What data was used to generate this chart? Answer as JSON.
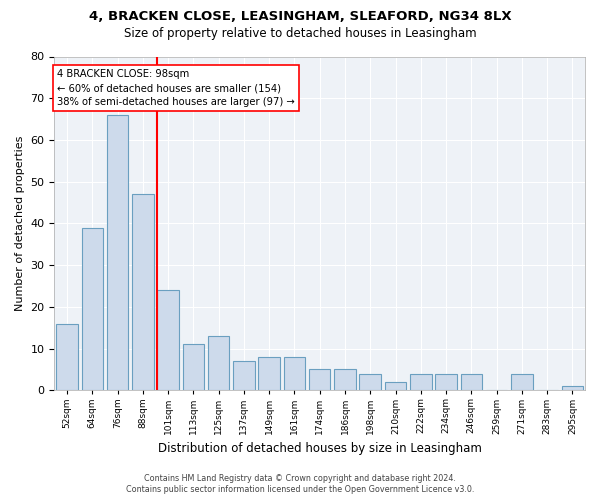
{
  "title1": "4, BRACKEN CLOSE, LEASINGHAM, SLEAFORD, NG34 8LX",
  "title2": "Size of property relative to detached houses in Leasingham",
  "xlabel": "Distribution of detached houses by size in Leasingham",
  "ylabel": "Number of detached properties",
  "bar_color": "#cddaeb",
  "bar_edge_color": "#6a9fc0",
  "vline_color": "red",
  "vline_x_idx": 4,
  "annotation_text": "4 BRACKEN CLOSE: 98sqm\n← 60% of detached houses are smaller (154)\n38% of semi-detached houses are larger (97) →",
  "categories": [
    "52sqm",
    "64sqm",
    "76sqm",
    "88sqm",
    "101sqm",
    "113sqm",
    "125sqm",
    "137sqm",
    "149sqm",
    "161sqm",
    "174sqm",
    "186sqm",
    "198sqm",
    "210sqm",
    "222sqm",
    "234sqm",
    "246sqm",
    "259sqm",
    "271sqm",
    "283sqm",
    "295sqm"
  ],
  "values": [
    16,
    39,
    66,
    47,
    24,
    11,
    13,
    7,
    8,
    8,
    5,
    5,
    4,
    2,
    4,
    4,
    4,
    0,
    4,
    0,
    1
  ],
  "ylim": [
    0,
    80
  ],
  "yticks": [
    0,
    10,
    20,
    30,
    40,
    50,
    60,
    70,
    80
  ],
  "footer1": "Contains HM Land Registry data © Crown copyright and database right 2024.",
  "footer2": "Contains public sector information licensed under the Open Government Licence v3.0.",
  "bg_color": "#eef2f7"
}
